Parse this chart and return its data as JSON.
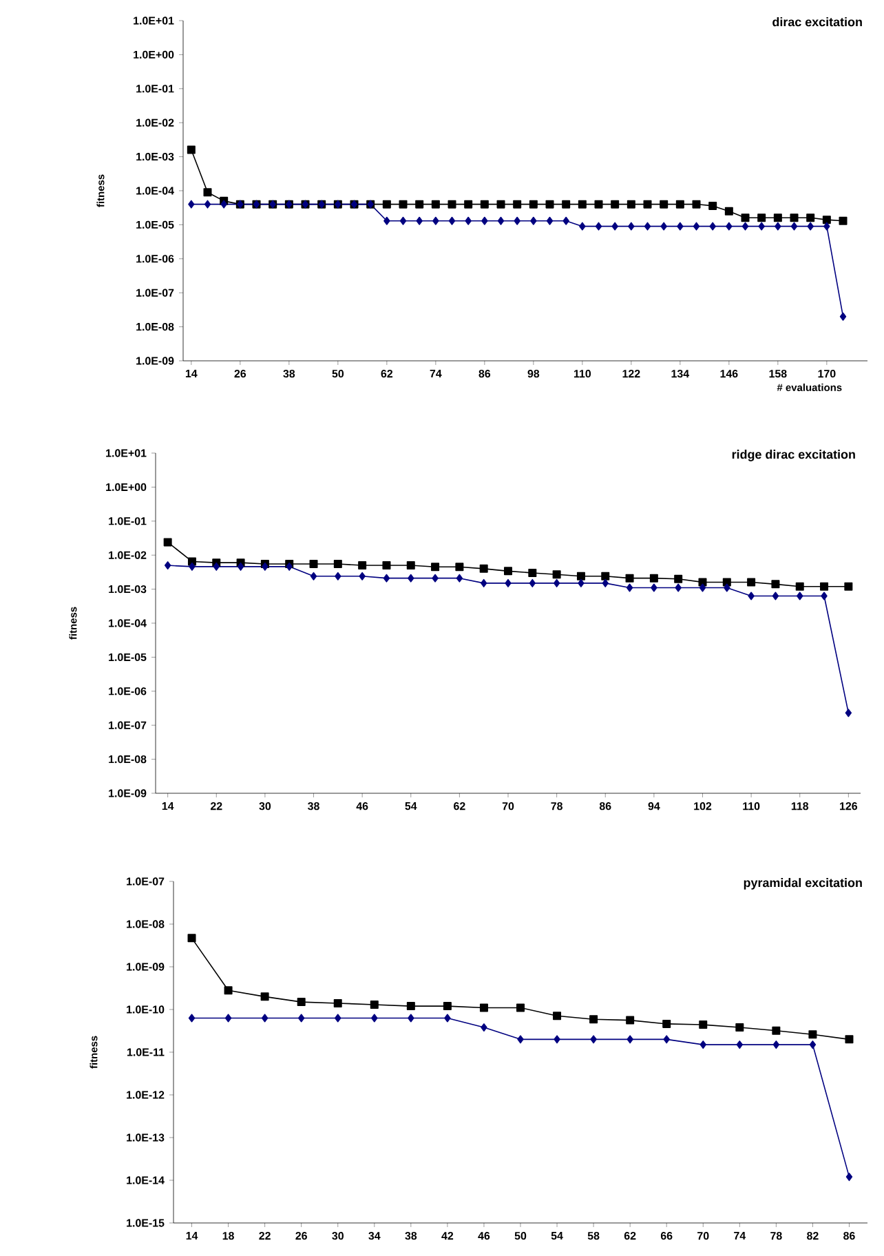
{
  "chart_data": [
    {
      "type": "line",
      "title": "dirac excitation",
      "xlabel": "# evaluations",
      "ylabel": "fitness",
      "log": "y",
      "grid": false,
      "x": [
        14,
        18,
        22,
        26,
        30,
        34,
        38,
        42,
        46,
        50,
        54,
        58,
        62,
        66,
        70,
        74,
        78,
        82,
        86,
        90,
        94,
        98,
        102,
        106,
        110,
        114,
        118,
        122,
        126,
        130,
        134,
        138,
        142,
        146,
        150,
        154,
        158,
        162,
        166,
        170,
        174
      ],
      "xlim": [
        12,
        180
      ],
      "xticks": [
        14,
        26,
        38,
        50,
        62,
        74,
        86,
        98,
        110,
        122,
        134,
        146,
        158,
        170
      ],
      "ylim": [
        1e-09,
        10
      ],
      "yticks": [
        {
          "value": 10,
          "label": "1.0E+01"
        },
        {
          "value": 1,
          "label": "1.0E+00"
        },
        {
          "value": 0.1,
          "label": "1.0E-01"
        },
        {
          "value": 0.01,
          "label": "1.0E-02"
        },
        {
          "value": 0.001,
          "label": "1.0E-03"
        },
        {
          "value": 0.0001,
          "label": "1.0E-04"
        },
        {
          "value": 1e-05,
          "label": "1.0E-05"
        },
        {
          "value": 1e-06,
          "label": "1.0E-06"
        },
        {
          "value": 1e-07,
          "label": "1.0E-07"
        },
        {
          "value": 1e-08,
          "label": "1.0E-08"
        },
        {
          "value": 1e-09,
          "label": "1.0E-09"
        }
      ],
      "series": [
        {
          "color": "#000000",
          "marker": "square",
          "values": [
            0.0016,
            9e-05,
            5e-05,
            4e-05,
            4e-05,
            4e-05,
            4e-05,
            4e-05,
            4e-05,
            4e-05,
            4e-05,
            4e-05,
            4e-05,
            4e-05,
            4e-05,
            4e-05,
            4e-05,
            4e-05,
            4e-05,
            4e-05,
            4e-05,
            4e-05,
            4e-05,
            4e-05,
            4e-05,
            4e-05,
            4e-05,
            4e-05,
            4e-05,
            4e-05,
            4e-05,
            4e-05,
            3.6e-05,
            2.5e-05,
            1.6e-05,
            1.6e-05,
            1.6e-05,
            1.6e-05,
            1.6e-05,
            1.4e-05,
            1.3e-05
          ]
        },
        {
          "color": "#000080",
          "marker": "diamond",
          "values": [
            4e-05,
            4e-05,
            4e-05,
            4e-05,
            4e-05,
            4e-05,
            4e-05,
            4e-05,
            4e-05,
            4e-05,
            4e-05,
            4e-05,
            1.3e-05,
            1.3e-05,
            1.3e-05,
            1.3e-05,
            1.3e-05,
            1.3e-05,
            1.3e-05,
            1.3e-05,
            1.3e-05,
            1.3e-05,
            1.3e-05,
            1.3e-05,
            9e-06,
            9e-06,
            9e-06,
            9e-06,
            9e-06,
            9e-06,
            9e-06,
            9e-06,
            9e-06,
            9e-06,
            9e-06,
            9e-06,
            9e-06,
            9e-06,
            9e-06,
            9e-06,
            2e-08
          ]
        }
      ]
    },
    {
      "type": "line",
      "title": "ridge dirac excitation",
      "ylabel": "fitness",
      "log": "y",
      "grid": false,
      "x": [
        14,
        18,
        22,
        26,
        30,
        34,
        38,
        42,
        46,
        50,
        54,
        58,
        62,
        66,
        70,
        74,
        78,
        82,
        86,
        90,
        94,
        98,
        102,
        106,
        110,
        114,
        118,
        122,
        126
      ],
      "xlim": [
        12,
        128
      ],
      "xticks": [
        14,
        22,
        30,
        38,
        46,
        54,
        62,
        70,
        78,
        86,
        94,
        102,
        110,
        118,
        126
      ],
      "ylim": [
        1e-09,
        10
      ],
      "yticks": [
        {
          "value": 10,
          "label": "1.0E+01"
        },
        {
          "value": 1,
          "label": "1.0E+00"
        },
        {
          "value": 0.1,
          "label": "1.0E-01"
        },
        {
          "value": 0.01,
          "label": "1.0E-02"
        },
        {
          "value": 0.001,
          "label": "1.0E-03"
        },
        {
          "value": 0.0001,
          "label": "1.0E-04"
        },
        {
          "value": 1e-05,
          "label": "1.0E-05"
        },
        {
          "value": 1e-06,
          "label": "1.0E-06"
        },
        {
          "value": 1e-07,
          "label": "1.0E-07"
        },
        {
          "value": 1e-08,
          "label": "1.0E-08"
        },
        {
          "value": 1e-09,
          "label": "1.0E-09"
        }
      ],
      "series": [
        {
          "color": "#000000",
          "marker": "square",
          "values": [
            0.024,
            0.0065,
            0.006,
            0.006,
            0.0055,
            0.0055,
            0.0055,
            0.0055,
            0.005,
            0.005,
            0.005,
            0.0045,
            0.0045,
            0.004,
            0.0034,
            0.003,
            0.0027,
            0.0024,
            0.0024,
            0.0021,
            0.0021,
            0.002,
            0.0016,
            0.0016,
            0.0016,
            0.0014,
            0.0012,
            0.0012,
            0.0012
          ]
        },
        {
          "color": "#000080",
          "marker": "diamond",
          "values": [
            0.005,
            0.0046,
            0.0046,
            0.0046,
            0.0046,
            0.0046,
            0.0024,
            0.0024,
            0.0024,
            0.0021,
            0.0021,
            0.0021,
            0.0021,
            0.0015,
            0.0015,
            0.0015,
            0.0015,
            0.0015,
            0.0015,
            0.0011,
            0.0011,
            0.0011,
            0.0011,
            0.0011,
            0.00063,
            0.00063,
            0.00063,
            0.00063,
            2.3e-07
          ]
        }
      ]
    },
    {
      "type": "line",
      "title": "pyramidal excitation",
      "ylabel": "fitness",
      "log": "y",
      "grid": false,
      "x": [
        14,
        18,
        22,
        26,
        30,
        34,
        38,
        42,
        46,
        50,
        54,
        58,
        62,
        66,
        70,
        74,
        78,
        82,
        86
      ],
      "xlim": [
        12,
        88
      ],
      "xticks": [
        14,
        18,
        22,
        26,
        30,
        34,
        38,
        42,
        46,
        50,
        54,
        58,
        62,
        66,
        70,
        74,
        78,
        82,
        86
      ],
      "ylim": [
        1e-15,
        1e-07
      ],
      "yticks": [
        {
          "value": 1e-07,
          "label": "1.0E-07"
        },
        {
          "value": 1e-08,
          "label": "1.0E-08"
        },
        {
          "value": 1e-09,
          "label": "1.0E-09"
        },
        {
          "value": 1e-10,
          "label": "1.0E-10"
        },
        {
          "value": 1e-11,
          "label": "1.0E-11"
        },
        {
          "value": 1e-12,
          "label": "1.0E-12"
        },
        {
          "value": 1e-13,
          "label": "1.0E-13"
        },
        {
          "value": 1e-14,
          "label": "1.0E-14"
        },
        {
          "value": 1e-15,
          "label": "1.0E-15"
        }
      ],
      "series": [
        {
          "color": "#000000",
          "marker": "square",
          "values": [
            4.7e-09,
            2.8e-10,
            2e-10,
            1.5e-10,
            1.4e-10,
            1.3e-10,
            1.2e-10,
            1.2e-10,
            1.1e-10,
            1.1e-10,
            7.1e-11,
            5.9e-11,
            5.6e-11,
            4.6e-11,
            4.4e-11,
            3.8e-11,
            3.2e-11,
            2.6e-11,
            2e-11
          ]
        },
        {
          "color": "#000080",
          "marker": "diamond",
          "values": [
            6.3e-11,
            6.3e-11,
            6.3e-11,
            6.3e-11,
            6.3e-11,
            6.3e-11,
            6.3e-11,
            6.3e-11,
            3.8e-11,
            2e-11,
            2e-11,
            2e-11,
            2e-11,
            2e-11,
            1.5e-11,
            1.5e-11,
            1.5e-11,
            1.5e-11,
            1.2e-14
          ]
        }
      ]
    }
  ]
}
